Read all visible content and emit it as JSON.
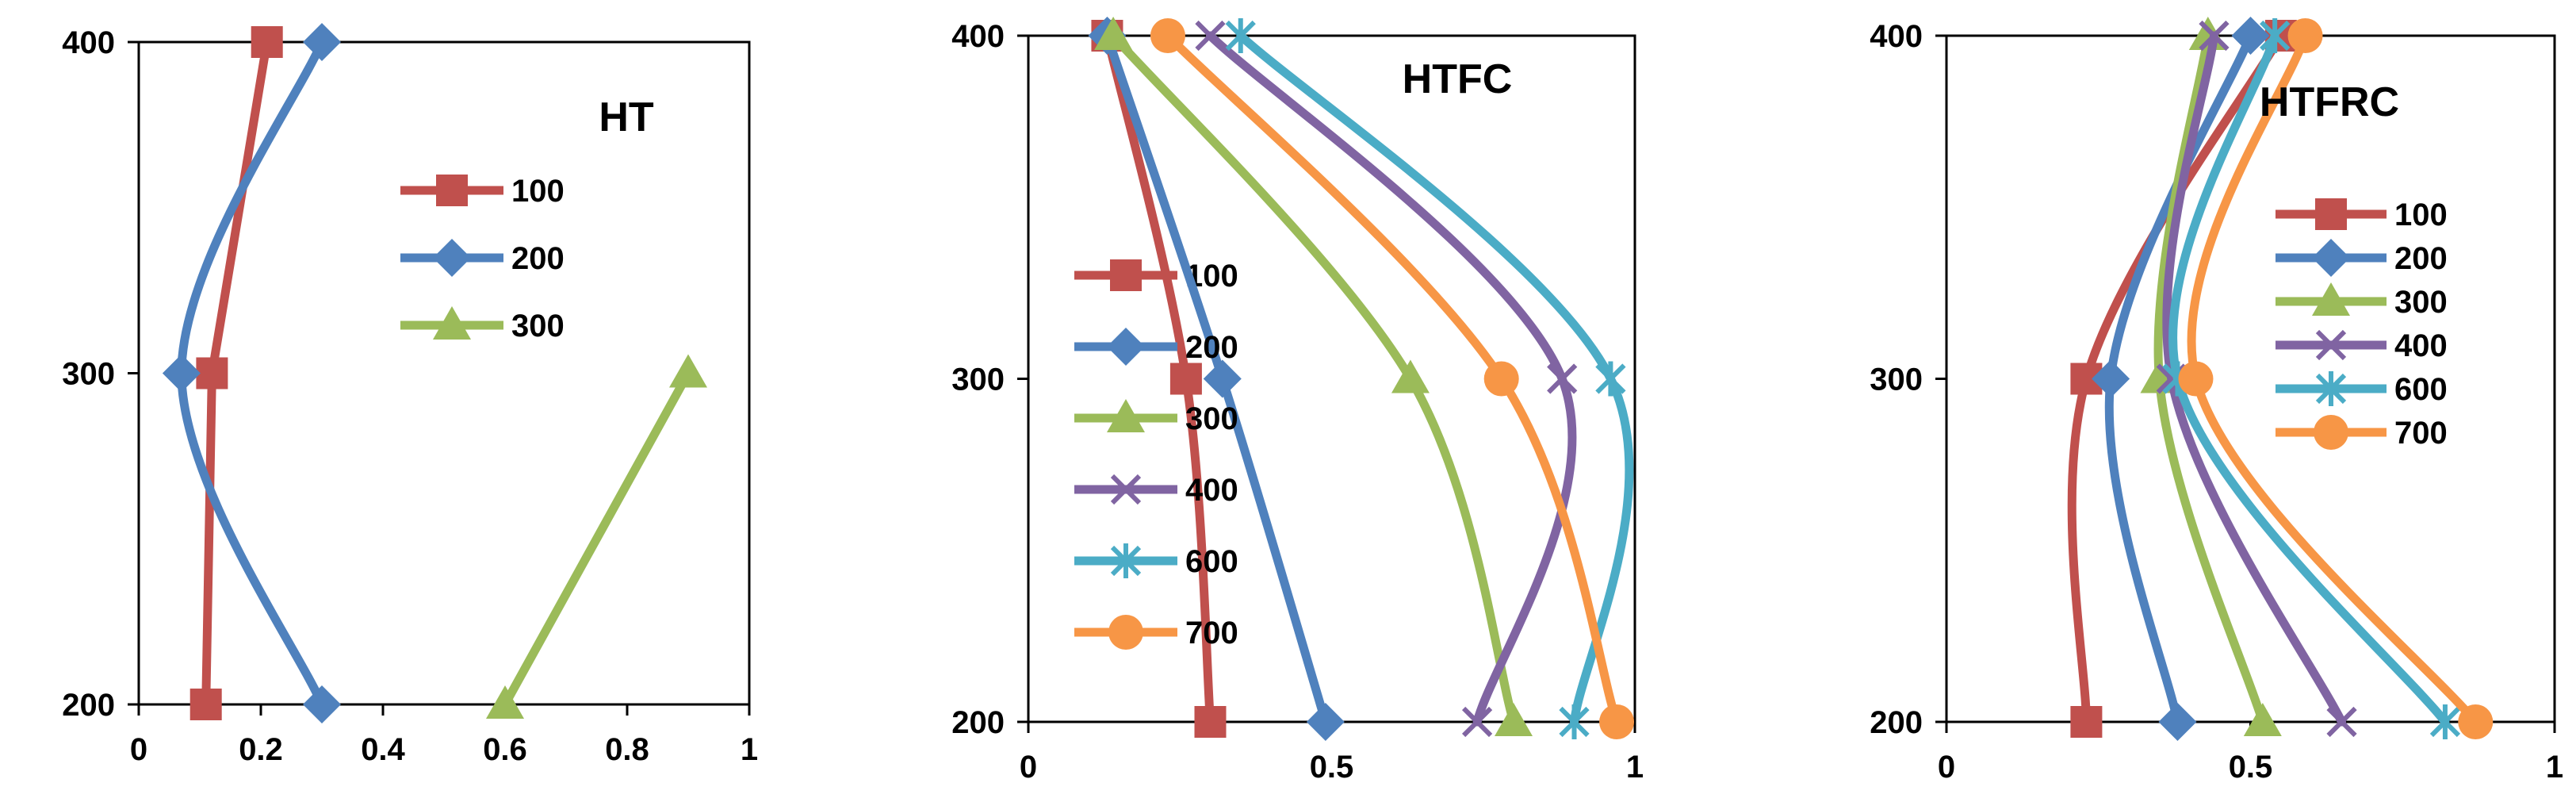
{
  "colors": {
    "100": "#C0504D",
    "200": "#4F81BD",
    "300": "#9BBB59",
    "400": "#8064A2",
    "600": "#4BACC6",
    "700": "#F79646"
  },
  "chart_data": [
    {
      "type": "line",
      "title": "HT",
      "xlabel": "",
      "ylabel": "",
      "xlim": [
        0,
        1
      ],
      "ylim": [
        200,
        400
      ],
      "xticks": [
        "0",
        "0.2",
        "0.4",
        "0.6",
        "0.8",
        "1"
      ],
      "yticks": [
        "200",
        "300",
        "400"
      ],
      "grid": false,
      "legend_position": "top-right",
      "series": [
        {
          "name": "100",
          "marker": "square",
          "smooth": false,
          "x": [
            0.11,
            0.12,
            0.21
          ],
          "y": [
            200,
            300,
            400
          ]
        },
        {
          "name": "200",
          "marker": "diamond",
          "smooth": true,
          "x": [
            0.3,
            0.07,
            0.3
          ],
          "y": [
            200,
            300,
            400
          ]
        },
        {
          "name": "300",
          "marker": "triangle",
          "smooth": false,
          "x": [
            0.6,
            0.9
          ],
          "y": [
            200,
            300
          ]
        }
      ]
    },
    {
      "type": "line",
      "title": "HTFC",
      "xlabel": "",
      "ylabel": "",
      "xlim": [
        0,
        1
      ],
      "ylim": [
        200,
        400
      ],
      "xticks": [
        "0",
        "0.5",
        "1"
      ],
      "yticks": [
        "200",
        "300",
        "400"
      ],
      "grid": false,
      "legend_position": "center-left",
      "series": [
        {
          "name": "100",
          "marker": "square",
          "smooth": true,
          "x": [
            0.3,
            0.26,
            0.13
          ],
          "y": [
            200,
            300,
            400
          ]
        },
        {
          "name": "200",
          "marker": "diamond",
          "smooth": true,
          "x": [
            0.49,
            0.32,
            0.13
          ],
          "y": [
            200,
            300,
            400
          ]
        },
        {
          "name": "300",
          "marker": "triangle",
          "smooth": true,
          "x": [
            0.8,
            0.63,
            0.14
          ],
          "y": [
            200,
            300,
            400
          ]
        },
        {
          "name": "400",
          "marker": "x",
          "smooth": true,
          "x": [
            0.74,
            0.88,
            0.3
          ],
          "y": [
            200,
            300,
            400
          ]
        },
        {
          "name": "600",
          "marker": "star",
          "smooth": true,
          "x": [
            0.9,
            0.96,
            0.35
          ],
          "y": [
            200,
            300,
            400
          ]
        },
        {
          "name": "700",
          "marker": "circle",
          "smooth": true,
          "x": [
            0.97,
            0.78,
            0.23
          ],
          "y": [
            200,
            300,
            400
          ]
        }
      ]
    },
    {
      "type": "line",
      "title": "HTFRC",
      "xlabel": "",
      "ylabel": "",
      "xlim": [
        0,
        1
      ],
      "ylim": [
        200,
        400
      ],
      "xticks": [
        "0",
        "0.5",
        "1"
      ],
      "yticks": [
        "200",
        "300",
        "400"
      ],
      "grid": false,
      "legend_position": "center-right",
      "series": [
        {
          "name": "100",
          "marker": "square",
          "smooth": true,
          "x": [
            0.23,
            0.23,
            0.55
          ],
          "y": [
            200,
            300,
            400
          ]
        },
        {
          "name": "200",
          "marker": "diamond",
          "smooth": true,
          "x": [
            0.38,
            0.27,
            0.5
          ],
          "y": [
            200,
            300,
            400
          ]
        },
        {
          "name": "300",
          "marker": "triangle",
          "smooth": true,
          "x": [
            0.52,
            0.35,
            0.43
          ],
          "y": [
            200,
            300,
            400
          ]
        },
        {
          "name": "400",
          "marker": "x",
          "smooth": true,
          "x": [
            0.65,
            0.37,
            0.44
          ],
          "y": [
            200,
            300,
            400
          ]
        },
        {
          "name": "600",
          "marker": "star",
          "smooth": true,
          "x": [
            0.82,
            0.38,
            0.54
          ],
          "y": [
            200,
            300,
            400
          ]
        },
        {
          "name": "700",
          "marker": "circle",
          "smooth": true,
          "x": [
            0.87,
            0.41,
            0.59
          ],
          "y": [
            200,
            300,
            400
          ]
        }
      ]
    }
  ]
}
